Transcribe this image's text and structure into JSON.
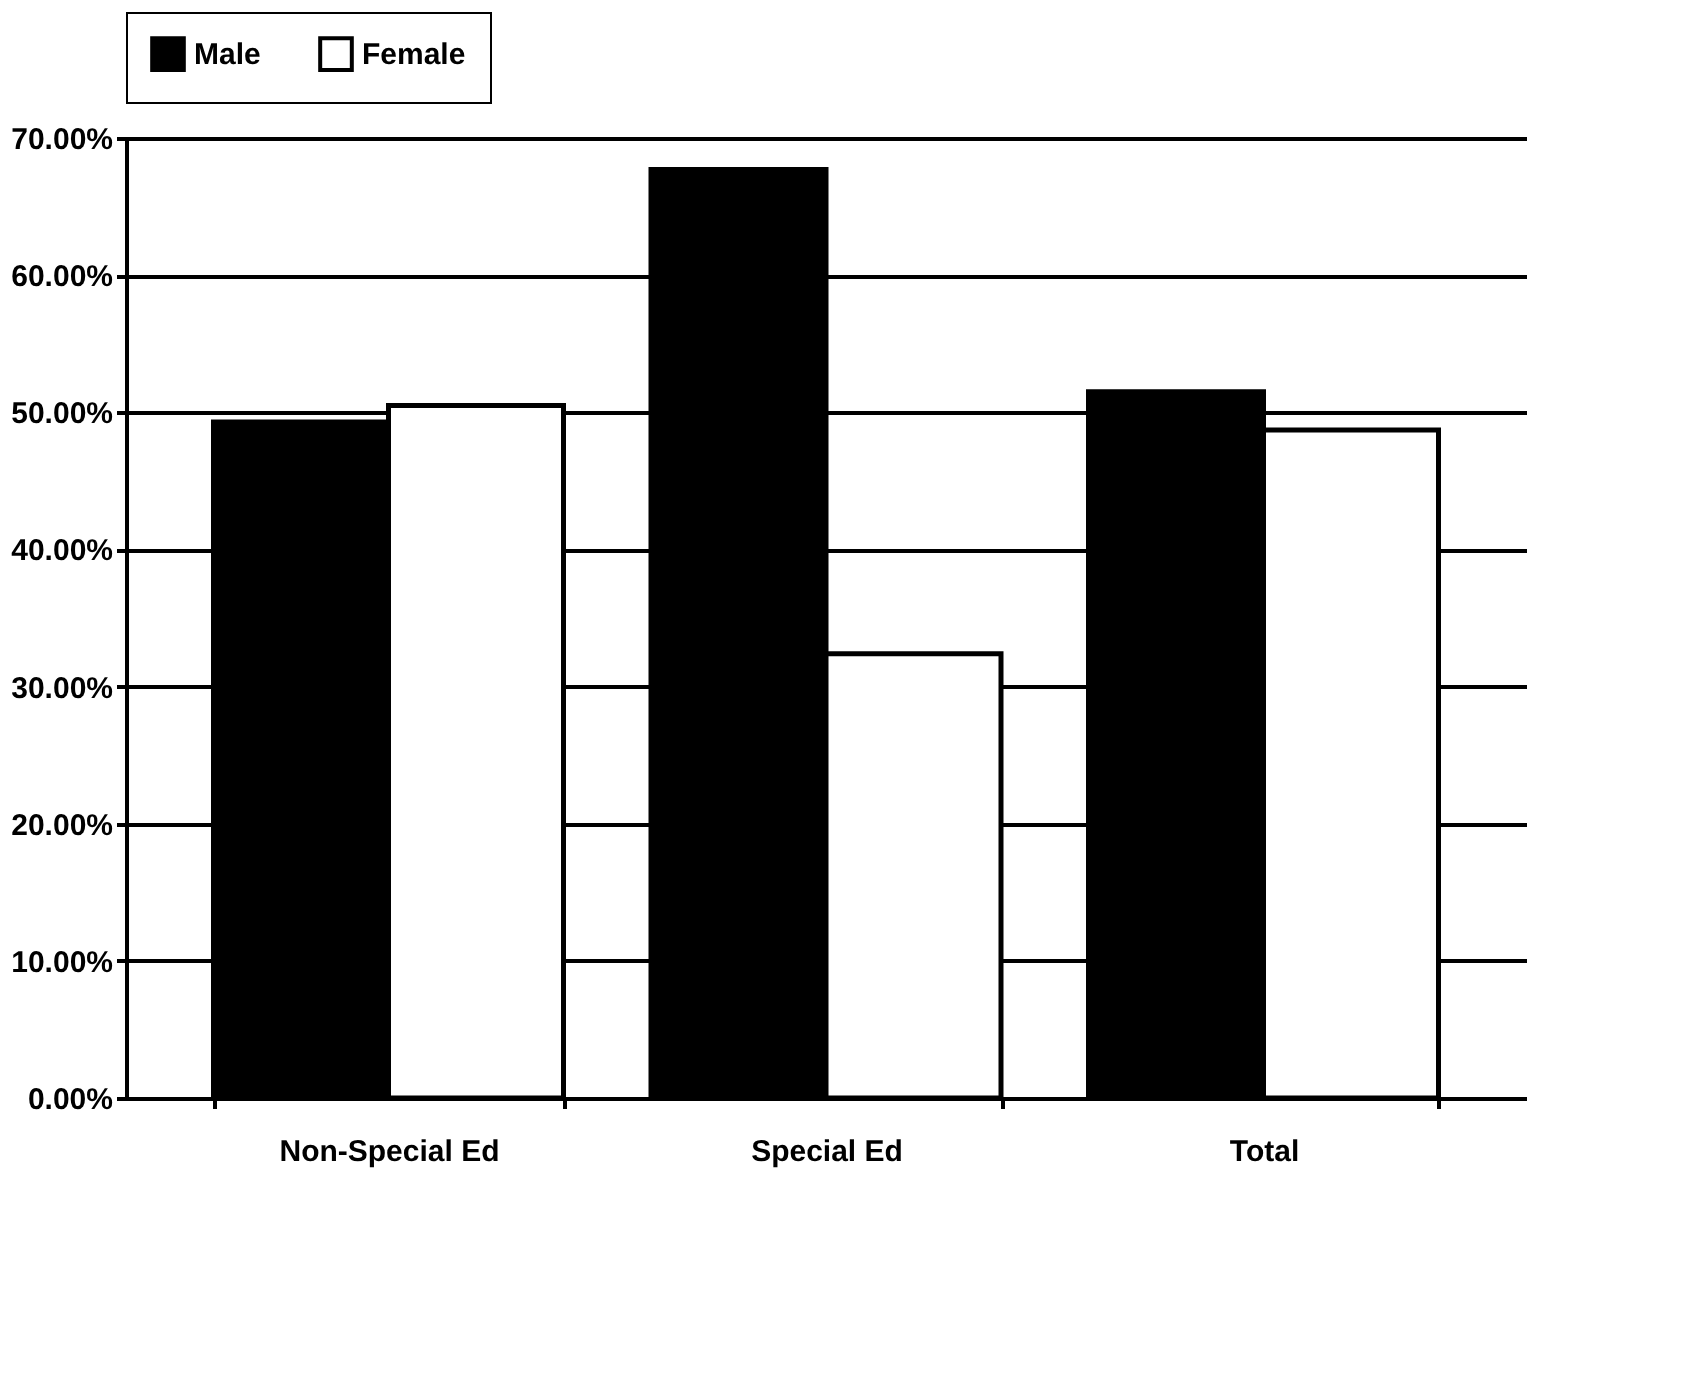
{
  "chart_data": {
    "type": "bar",
    "categories": [
      "Non-Special Ed",
      "Special Ed",
      "Total"
    ],
    "series": [
      {
        "name": "Male",
        "color": "#000000",
        "values": [
          49.3,
          67.7,
          51.5
        ]
      },
      {
        "name": "Female",
        "color": "#ffffff",
        "values": [
          50.5,
          32.4,
          48.7
        ]
      }
    ],
    "ylim": [
      0,
      70
    ],
    "yticks": [
      {
        "value": 0,
        "label": "0.00%"
      },
      {
        "value": 10,
        "label": "10.00%"
      },
      {
        "value": 20,
        "label": "20.00%"
      },
      {
        "value": 30,
        "label": "30.00%"
      },
      {
        "value": 40,
        "label": "40.00%"
      },
      {
        "value": 50,
        "label": "50.00%"
      },
      {
        "value": 60,
        "label": "60.00%"
      },
      {
        "value": 70,
        "label": "70.00%"
      }
    ],
    "grid": "y",
    "legend": "top"
  }
}
